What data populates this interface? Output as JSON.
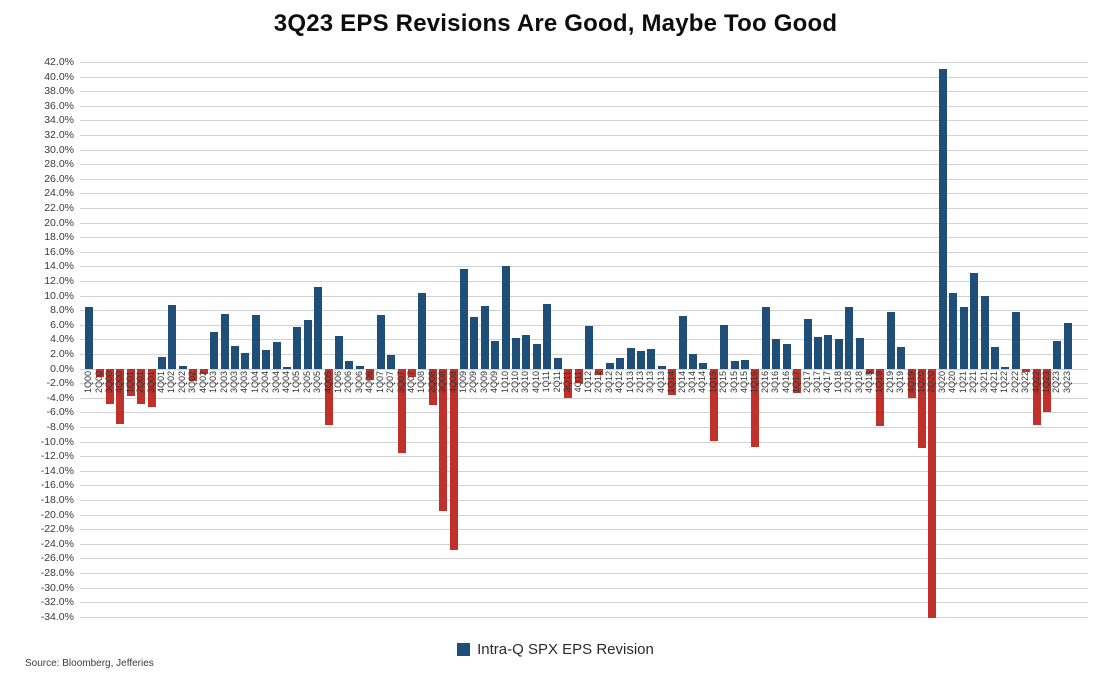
{
  "title": "3Q23 EPS Revisions Are Good, Maybe Too Good",
  "source_note": "Source: Bloomberg, Jefferies",
  "legend": {
    "label": "Intra-Q SPX EPS Revision",
    "swatch_color": "#1f4e79"
  },
  "colors": {
    "positive_bar": "#1f4e79",
    "negative_bar": "#c1312b",
    "gridline": "#d2d2d2",
    "axis_text": "#3a3a3a",
    "title_text": "#0d0d0d"
  },
  "chart_data": {
    "type": "bar",
    "title": "3Q23 EPS Revisions Are Good, Maybe Too Good",
    "xlabel": "",
    "ylabel": "",
    "ylim": [
      -34.0,
      42.0
    ],
    "ytick_step": 2.0,
    "ytick_format": "one_decimal_percent",
    "grid": true,
    "legend_position": "bottom-center",
    "legend_entries": [
      "Intra-Q SPX EPS Revision"
    ],
    "color_rule": "positive values navy, negative values red",
    "categories": [
      "1Q00",
      "2Q00",
      "3Q00",
      "4Q00",
      "1Q01",
      "2Q01",
      "3Q01",
      "4Q01",
      "1Q02",
      "2Q02",
      "3Q02",
      "4Q02",
      "1Q03",
      "2Q03",
      "3Q03",
      "4Q03",
      "1Q04",
      "2Q04",
      "3Q04",
      "4Q04",
      "1Q05",
      "2Q05",
      "3Q05",
      "4Q05",
      "1Q06",
      "2Q06",
      "3Q06",
      "4Q06",
      "1Q07",
      "2Q07",
      "3Q07",
      "4Q07",
      "1Q08",
      "2Q08",
      "3Q08",
      "4Q08",
      "1Q09",
      "2Q09",
      "3Q09",
      "4Q09",
      "1Q10",
      "2Q10",
      "3Q10",
      "4Q10",
      "1Q11",
      "2Q11",
      "3Q11",
      "4Q11",
      "1Q12",
      "2Q12",
      "3Q12",
      "4Q12",
      "1Q13",
      "2Q13",
      "3Q13",
      "4Q13",
      "1Q14",
      "2Q14",
      "3Q14",
      "4Q14",
      "1Q15",
      "2Q15",
      "3Q15",
      "4Q15",
      "1Q16",
      "2Q16",
      "3Q16",
      "4Q16",
      "1Q17",
      "2Q17",
      "3Q17",
      "4Q17",
      "1Q18",
      "2Q18",
      "3Q18",
      "4Q18",
      "1Q19",
      "2Q19",
      "3Q19",
      "4Q19",
      "1Q20",
      "2Q20",
      "3Q20",
      "4Q20",
      "1Q21",
      "2Q21",
      "3Q21",
      "4Q21",
      "1Q22",
      "2Q22",
      "3Q22",
      "4Q22",
      "1Q23",
      "2Q23",
      "3Q23"
    ],
    "values": [
      8.4,
      -1.1,
      -4.9,
      -7.6,
      -3.8,
      -4.9,
      -5.2,
      1.6,
      8.7,
      0.4,
      -1.7,
      -0.7,
      5.0,
      7.5,
      3.1,
      2.1,
      7.4,
      2.5,
      3.7,
      0.2,
      5.7,
      6.7,
      11.2,
      -7.7,
      4.5,
      1.1,
      0.4,
      -1.6,
      7.3,
      1.8,
      -11.5,
      -1.2,
      10.4,
      -5.0,
      -19.5,
      -24.8,
      13.7,
      7.1,
      8.6,
      3.8,
      14.0,
      4.2,
      4.6,
      3.4,
      8.9,
      1.5,
      -4.0,
      -2.0,
      5.9,
      -0.9,
      0.8,
      1.5,
      2.8,
      2.4,
      2.7,
      0.3,
      -3.6,
      7.2,
      2.0,
      0.8,
      -9.9,
      6.0,
      1.0,
      1.2,
      -10.7,
      8.4,
      4.0,
      3.4,
      -3.3,
      6.8,
      4.3,
      4.6,
      4.1,
      8.5,
      4.2,
      -0.8,
      -7.9,
      7.8,
      3.0,
      -4.0,
      -10.9,
      -34.2,
      41.0,
      10.4,
      8.5,
      13.1,
      10.0,
      3.0,
      0.2,
      7.8,
      -0.5,
      -7.7,
      -5.9,
      3.8,
      6.3
    ]
  }
}
